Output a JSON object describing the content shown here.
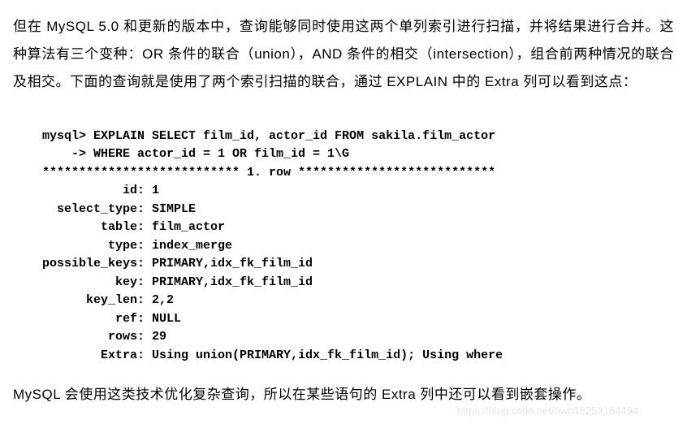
{
  "paragraphs": {
    "p1": "但在 MySQL 5.0 和更新的版本中，查询能够同时使用这两个单列索引进行扫描，并将结果进行合并。这种算法有三个变种：OR 条件的联合（union），AND 条件的相交（intersection），组合前两种情况的联合及相交。下面的查询就是使用了两个索引扫描的联合，通过 EXPLAIN 中的 Extra 列可以看到这点：",
    "p2": "MySQL 会使用这类技术优化复杂查询，所以在某些语句的 Extra 列中还可以看到嵌套操作。"
  },
  "code": {
    "line1": "mysql> EXPLAIN SELECT film_id, actor_id FROM sakila.film_actor",
    "line2": "    -> WHERE actor_id = 1 OR film_id = 1\\G",
    "line3": "*************************** 1. row ***************************",
    "line4": "           id: 1",
    "line5": "  select_type: SIMPLE",
    "line6": "        table: film_actor",
    "line7": "         type: index_merge",
    "line8": "possible_keys: PRIMARY,idx_fk_film_id",
    "line9": "          key: PRIMARY,idx_fk_film_id",
    "line10": "      key_len: 2,2",
    "line11": "          ref: NULL",
    "line12": "         rows: 29",
    "line13": "        Extra: Using union(PRIMARY,idx_fk_film_id); Using where"
  },
  "watermark": "https://blog.csdn.net/hwb18253164494"
}
